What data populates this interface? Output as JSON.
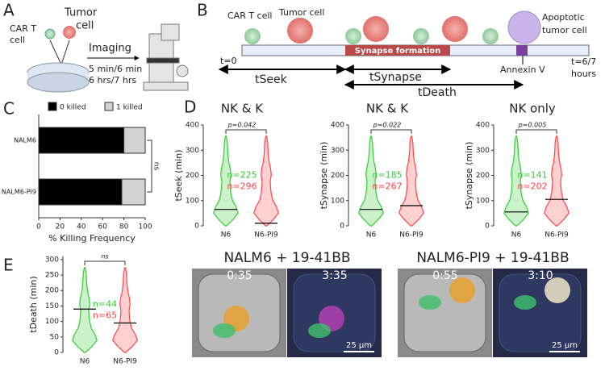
{
  "panel_labels": [
    "A",
    "B",
    "C",
    "D",
    "E"
  ],
  "panel_a": {
    "car_t_cell": [
      "CAR T",
      "cell"
    ],
    "tumor_cell": [
      "Tumor",
      "cell"
    ],
    "imaging": "Imaging",
    "intervals": [
      "5 min/6 min",
      "6 hrs/7 hrs"
    ]
  },
  "panel_b": {
    "car_t_cell": "CAR T cell",
    "tumor_cell": "Tumor cell",
    "synapse": "Synapse formation",
    "apoptotic": [
      "Apoptotic",
      "tumor cell"
    ],
    "t0": "t=0",
    "tseek": "tSeek",
    "tsynapse": "tSynapse",
    "tdeath": "tDeath",
    "annexin": "Annexin V",
    "tend": [
      "t=6/7",
      "hours"
    ]
  },
  "chart_data": [
    {
      "type": "hbar",
      "xlabel": "% Killing Frequency",
      "categories": [
        "NALM6",
        "NALM6-PI9"
      ],
      "series": [
        {
          "name": "0 killed",
          "color": "#000000",
          "values": [
            80,
            78
          ]
        },
        {
          "name": "1 killed",
          "color": "#d3d3d3",
          "values": [
            20,
            22
          ]
        }
      ],
      "xlim": [
        0,
        100
      ],
      "xticks": [
        0,
        20,
        40,
        60,
        80,
        100
      ],
      "annotation": "ns"
    },
    {
      "type": "violin",
      "title": "NK & K",
      "p_value": "p=0.042",
      "ylabel": "tSeek (min)",
      "categories": [
        "N6",
        "N6-PI9"
      ],
      "colors": [
        "#33cc33",
        "#ff4444"
      ],
      "medians": [
        65,
        10
      ],
      "n": [
        225,
        296
      ],
      "n_labels": [
        "n=225",
        "n=296"
      ],
      "ylim": [
        0,
        400
      ],
      "yticks": [
        0,
        100,
        200,
        300,
        400
      ]
    },
    {
      "type": "violin",
      "title": "NK & K",
      "p_value": "p=0.022",
      "ylabel": "tSynapse (min)",
      "categories": [
        "N6",
        "N6-PI9"
      ],
      "colors": [
        "#33cc33",
        "#ff4444"
      ],
      "medians": [
        65,
        80
      ],
      "n": [
        185,
        267
      ],
      "n_labels": [
        "n=185",
        "n=267"
      ],
      "ylim": [
        0,
        400
      ],
      "yticks": [
        0,
        100,
        200,
        300,
        400
      ]
    },
    {
      "type": "violin",
      "title": "NK only",
      "p_value": "p=0.005",
      "ylabel": "tSynapse (min)",
      "categories": [
        "N6",
        "N6-PI9"
      ],
      "colors": [
        "#33cc33",
        "#ff4444"
      ],
      "medians": [
        55,
        105
      ],
      "n": [
        141,
        202
      ],
      "n_labels": [
        "n=141",
        "n=202"
      ],
      "ylim": [
        0,
        400
      ],
      "yticks": [
        0,
        100,
        200,
        300,
        400
      ]
    },
    {
      "type": "violin",
      "p_value": "ns",
      "ylabel": "tDeath (min)",
      "categories": [
        "N6",
        "N6-PI9"
      ],
      "colors": [
        "#33cc33",
        "#ff4444"
      ],
      "medians": [
        140,
        95
      ],
      "n": [
        44,
        65
      ],
      "n_labels": [
        "n=44",
        "n=65"
      ],
      "ylim": [
        0,
        310
      ],
      "yticks": [
        0,
        50,
        100,
        150,
        200,
        250,
        300
      ]
    }
  ],
  "micrographs": [
    {
      "title": "NALM6 + 19-41BB",
      "times": [
        "0:35",
        "3:35"
      ],
      "scale_bar": "25 µm"
    },
    {
      "title": "NALM6-PI9 + 19-41BB",
      "times": [
        "0:55",
        "3:10"
      ],
      "scale_bar": "25 µm"
    }
  ]
}
